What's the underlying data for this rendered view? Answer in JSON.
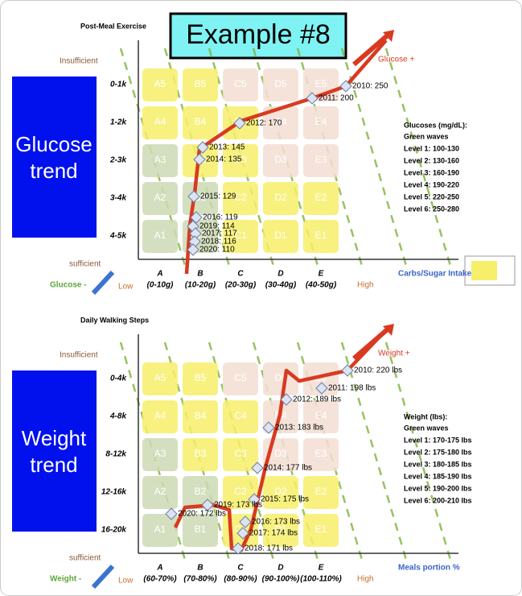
{
  "title": "Example #8",
  "panels": [
    {
      "side_label": [
        "Glucose",
        "trend"
      ],
      "y_title": "Post-Meal Exercise",
      "y_top": "Insufficient",
      "y_bottom": "sufficient",
      "y_categories": [
        "0-1k",
        "1-2k",
        "2-3k",
        "3-4k",
        "4-5k"
      ],
      "x_categories": [
        {
          "letter": "A",
          "range": "(0-10g)"
        },
        {
          "letter": "B",
          "range": "(10-20g)"
        },
        {
          "letter": "C",
          "range": "(20-30g)"
        },
        {
          "letter": "D",
          "range": "(30-40g)"
        },
        {
          "letter": "E",
          "range": "(40-50g)"
        }
      ],
      "x_title": "Carbs/Sugar Intake",
      "x_low": "Low",
      "x_high": "High",
      "up_arrow": "Glucose +",
      "down_arrow": "Glucose -",
      "cells": [
        [
          {
            "label": "A5",
            "color": "#f7ef6a"
          },
          {
            "label": "B5",
            "color": "#f7ef6a"
          },
          {
            "label": "C5",
            "color": "#f3ded3"
          },
          {
            "label": "D5",
            "color": "#f3ded3"
          },
          {
            "label": "E5",
            "color": "#f3ded3"
          }
        ],
        [
          {
            "label": "A4",
            "color": "#f7ef6a"
          },
          {
            "label": "B4",
            "color": "#f7ef6a"
          },
          {
            "label": "C4",
            "color": "#f7ef6a"
          },
          {
            "label": "D4",
            "color": "#f3ded3"
          },
          {
            "label": "E4",
            "color": "#f3ded3"
          }
        ],
        [
          {
            "label": "A3",
            "color": "#ccd9b4"
          },
          {
            "label": "B3",
            "color": "#f7ef6a"
          },
          {
            "label": "C3",
            "color": "#f7ef6a"
          },
          {
            "label": "D3",
            "color": "#f3ded3"
          },
          {
            "label": "E3",
            "color": "#f3ded3"
          }
        ],
        [
          {
            "label": "A2",
            "color": "#ccd9b4"
          },
          {
            "label": "B2",
            "color": "#ccd9b4"
          },
          {
            "label": "C2",
            "color": "#f7ef6a"
          },
          {
            "label": "D2",
            "color": "#f7ef6a"
          },
          {
            "label": "E2",
            "color": "#f7ef6a"
          }
        ],
        [
          {
            "label": "A1",
            "color": "#ccd9b4"
          },
          {
            "label": "B1",
            "color": "#ccd9b4"
          },
          {
            "label": "C1",
            "color": "#f7ef6a"
          },
          {
            "label": "D1",
            "color": "#f7ef6a"
          },
          {
            "label": "E1",
            "color": "#f7ef6a"
          }
        ]
      ],
      "points": [
        "2010: 250",
        "2011: 200",
        "2012: 170",
        "2013: 145",
        "2014: 135",
        "2015: 129",
        "2016: 119",
        "2019: 114",
        "2017: 117",
        "2018: 116",
        "2020: 110"
      ],
      "legend": {
        "title": "Glucoses (mg/dL):",
        "subtitle": "Green waves",
        "levels": [
          "Level 1: 100-130",
          "Level 2: 130-160",
          "Level 3: 160-190",
          "Level 4: 190-220",
          "Level 5: 220-250",
          "Level 6: 250-280"
        ]
      }
    },
    {
      "side_label": [
        "Weight",
        "trend"
      ],
      "y_title": "Daily Walking Steps",
      "y_top": "Insufficient",
      "y_bottom": "sufficient",
      "y_categories": [
        "0-4k",
        "4-8k",
        "8-12k",
        "12-16k",
        "16-20k"
      ],
      "x_categories": [
        {
          "letter": "A",
          "range": "(60-70%)"
        },
        {
          "letter": "B",
          "range": "(70-80%)"
        },
        {
          "letter": "C",
          "range": "(80-90%)"
        },
        {
          "letter": "D",
          "range": "(90-100%)"
        },
        {
          "letter": "E",
          "range": "(100-110%)"
        }
      ],
      "x_title": "Meals portion %",
      "x_low": "Low",
      "x_high": "High",
      "up_arrow": "Weight +",
      "down_arrow": "Weight -",
      "cells": [
        [
          {
            "label": "A5",
            "color": "#f7ef6a"
          },
          {
            "label": "B5",
            "color": "#f7ef6a"
          },
          {
            "label": "C5",
            "color": "#f3ded3"
          },
          {
            "label": "D5",
            "color": "#f3ded3"
          },
          {
            "label": "E5",
            "color": "#f3ded3"
          }
        ],
        [
          {
            "label": "A4",
            "color": "#f7ef6a"
          },
          {
            "label": "B4",
            "color": "#f7ef6a"
          },
          {
            "label": "C4",
            "color": "#f7ef6a"
          },
          {
            "label": "D4",
            "color": "#f3ded3"
          },
          {
            "label": "E4",
            "color": "#f3ded3"
          }
        ],
        [
          {
            "label": "A3",
            "color": "#ccd9b4"
          },
          {
            "label": "B3",
            "color": "#f7ef6a"
          },
          {
            "label": "C3",
            "color": "#f7ef6a"
          },
          {
            "label": "D3",
            "color": "#f3ded3"
          },
          {
            "label": "E3",
            "color": "#f3ded3"
          }
        ],
        [
          {
            "label": "A2",
            "color": "#ccd9b4"
          },
          {
            "label": "B2",
            "color": "#ccd9b4"
          },
          {
            "label": "C2",
            "color": "#f7ef6a"
          },
          {
            "label": "D2",
            "color": "#f7ef6a"
          },
          {
            "label": "E2",
            "color": "#f7ef6a"
          }
        ],
        [
          {
            "label": "A1",
            "color": "#ccd9b4"
          },
          {
            "label": "B1",
            "color": "#ccd9b4"
          },
          {
            "label": "C1",
            "color": "#f7ef6a"
          },
          {
            "label": "D1",
            "color": "#f7ef6a"
          },
          {
            "label": "E1",
            "color": "#f7ef6a"
          }
        ]
      ],
      "points": [
        "2010: 220 lbs",
        "2011: 198 lbs",
        "2012: 189 lbs",
        "2013: 183 lbs",
        "2014: 177 lbs",
        "2015: 175 lbs",
        "2016: 173 lbs",
        "2017: 174 lbs",
        "2018: 171 lbs",
        "2019: 173 lbs",
        "2020: 172 lbs"
      ],
      "legend": {
        "title": "Weight (lbs):",
        "subtitle": "Green waves",
        "levels": [
          "Level 1: 170-175 lbs",
          "Level 2: 175-180 lbs",
          "Level 3: 180-185 lbs",
          "Level 4: 185-190 lbs",
          "Level 5: 190-200 lbs",
          "Level 6: 200-210 lbs"
        ]
      }
    }
  ]
}
